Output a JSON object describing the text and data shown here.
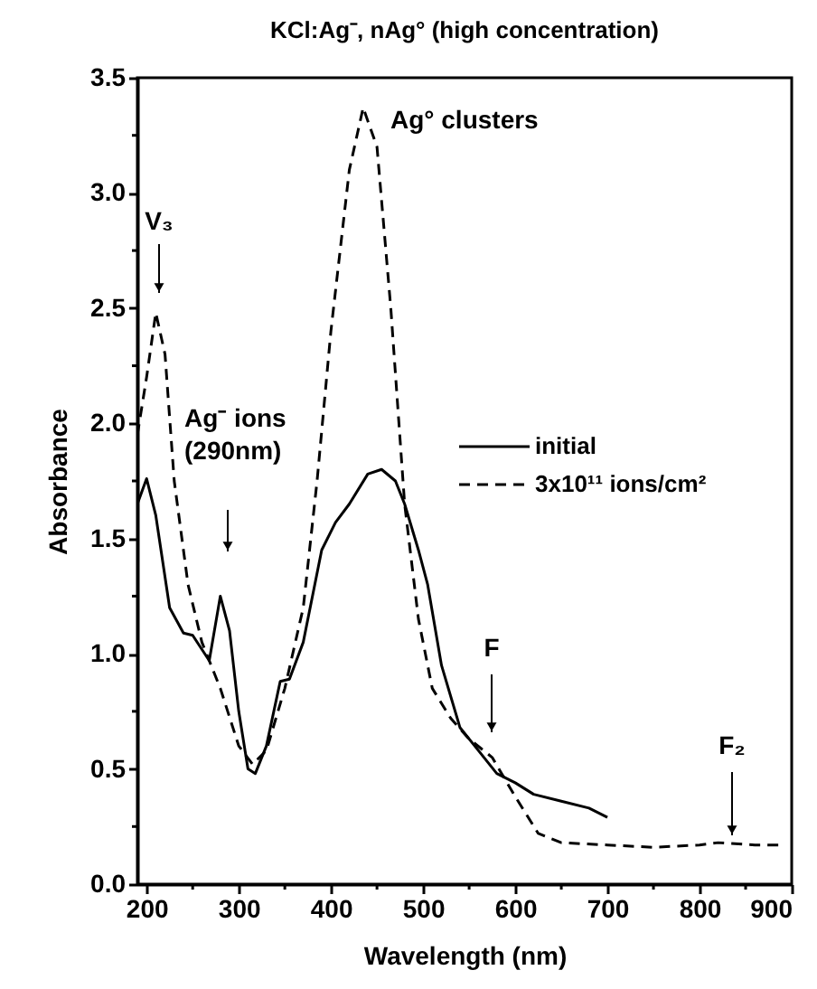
{
  "chart_data": {
    "type": "line",
    "title": "KCl:Ag⁻, nAg° (high concentration)",
    "xlabel": "Wavelength (nm)",
    "ylabel": "Absorbance",
    "xlim": [
      190,
      900
    ],
    "ylim": [
      0,
      3.5
    ],
    "xticks": [
      200,
      {
        "value": 250,
        "label": null
      },
      300,
      {
        "value": 350,
        "label": null
      },
      400,
      {
        "value": 450,
        "label": null
      },
      500,
      {
        "value": 550,
        "label": null
      },
      600,
      {
        "value": 650,
        "label": null
      },
      700,
      {
        "value": 750,
        "label": null
      },
      800,
      {
        "value": 850,
        "label": null
      },
      900
    ],
    "yticks": [
      {
        "value": 0,
        "label": "0.0"
      },
      {
        "value": 0.25,
        "label": null
      },
      0.5,
      {
        "value": 0.75,
        "label": null
      },
      {
        "value": 1,
        "label": "1.0"
      },
      {
        "value": 1.25,
        "label": null
      },
      1.5,
      {
        "value": 1.75,
        "label": null
      },
      {
        "value": 2,
        "label": "2.0"
      },
      {
        "value": 2.25,
        "label": null
      },
      2.5,
      {
        "value": 2.75,
        "label": null
      },
      {
        "value": 3,
        "label": "3.0"
      },
      {
        "value": 3.25,
        "label": null
      },
      3.5
    ],
    "grid": false,
    "legend": "right",
    "marker": "none",
    "series": [
      {
        "name": "initial",
        "color": "#000000",
        "line_style": "solid",
        "x": [
          190,
          200,
          210,
          225,
          240,
          250,
          268,
          280,
          290,
          300,
          310,
          318,
          330,
          345,
          355,
          370,
          390,
          405,
          420,
          440,
          455,
          470,
          480,
          495,
          505,
          520,
          540,
          560,
          580,
          600,
          620,
          650,
          680,
          700
        ],
        "values": [
          1.65,
          1.76,
          1.6,
          1.2,
          1.09,
          1.08,
          0.97,
          1.25,
          1.1,
          0.75,
          0.5,
          0.48,
          0.6,
          0.88,
          0.89,
          1.05,
          1.45,
          1.57,
          1.65,
          1.78,
          1.8,
          1.75,
          1.65,
          1.45,
          1.3,
          0.95,
          0.68,
          0.58,
          0.48,
          0.44,
          0.39,
          0.36,
          0.33,
          0.29
        ]
      },
      {
        "name": "3x10¹¹ ions/cm²",
        "color": "#000000",
        "line_style": "dashed",
        "x": [
          190,
          200,
          210,
          220,
          230,
          245,
          260,
          280,
          300,
          315,
          330,
          350,
          370,
          385,
          400,
          420,
          435,
          450,
          465,
          480,
          495,
          510,
          530,
          550,
          575,
          600,
          625,
          650,
          700,
          750,
          800,
          820,
          860,
          890
        ],
        "values": [
          1.95,
          2.2,
          2.48,
          2.3,
          1.75,
          1.3,
          1.05,
          0.85,
          0.6,
          0.52,
          0.58,
          0.85,
          1.2,
          1.75,
          2.4,
          3.1,
          3.37,
          3.2,
          2.5,
          1.65,
          1.15,
          0.85,
          0.72,
          0.63,
          0.55,
          0.38,
          0.22,
          0.18,
          0.17,
          0.16,
          0.17,
          0.18,
          0.17,
          0.17
        ]
      }
    ],
    "annotations": [
      "V₃",
      "Ag⁻ ions\n(290nm)",
      "Ag° clusters",
      "F",
      "F₂"
    ]
  }
}
